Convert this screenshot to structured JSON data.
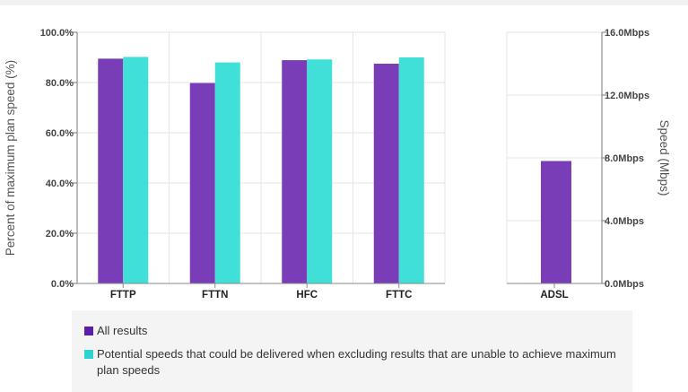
{
  "chart_data": {
    "type": "bar",
    "groups": [
      {
        "categories": [
          "FTTP",
          "FTTN",
          "HFC",
          "FTTC"
        ],
        "axis": "left",
        "series": [
          {
            "name": "All results",
            "values": [
              89.5,
              79.8,
              88.9,
              87.5
            ]
          },
          {
            "name": "Potential speeds that could be delivered when excluding results that are unable to achieve maximum plan speeds",
            "values": [
              90.2,
              88.0,
              89.2,
              90.0
            ]
          }
        ]
      },
      {
        "categories": [
          "ADSL"
        ],
        "axis": "right",
        "series": [
          {
            "name": "All results",
            "values": [
              7.8
            ]
          }
        ]
      }
    ],
    "left_axis": {
      "label": "Percent of maximum plan speed (%)",
      "ylim": [
        0,
        100
      ],
      "ticks": [
        "0.0%",
        "20.0%",
        "40.0%",
        "60.0%",
        "80.0%",
        "100.0%"
      ]
    },
    "right_axis": {
      "label": "Speed (Mbps)",
      "ylim": [
        0,
        16
      ],
      "ticks": [
        "0.0Mbps",
        "4.0Mbps",
        "8.0Mbps",
        "12.0Mbps",
        "16.0Mbps"
      ]
    },
    "grid": true,
    "legend_position": "bottom"
  },
  "colors": {
    "all_results": "#7a3db8",
    "potential": "#40e0d8",
    "legend_all_results": "#5a1fa5",
    "legend_potential": "#2ed3d0",
    "grid": "#e6e6e6"
  },
  "legend": {
    "items": [
      {
        "label": "All results"
      },
      {
        "label": "Potential speeds that could be delivered when excluding results that are unable to achieve maximum plan speeds"
      }
    ]
  }
}
